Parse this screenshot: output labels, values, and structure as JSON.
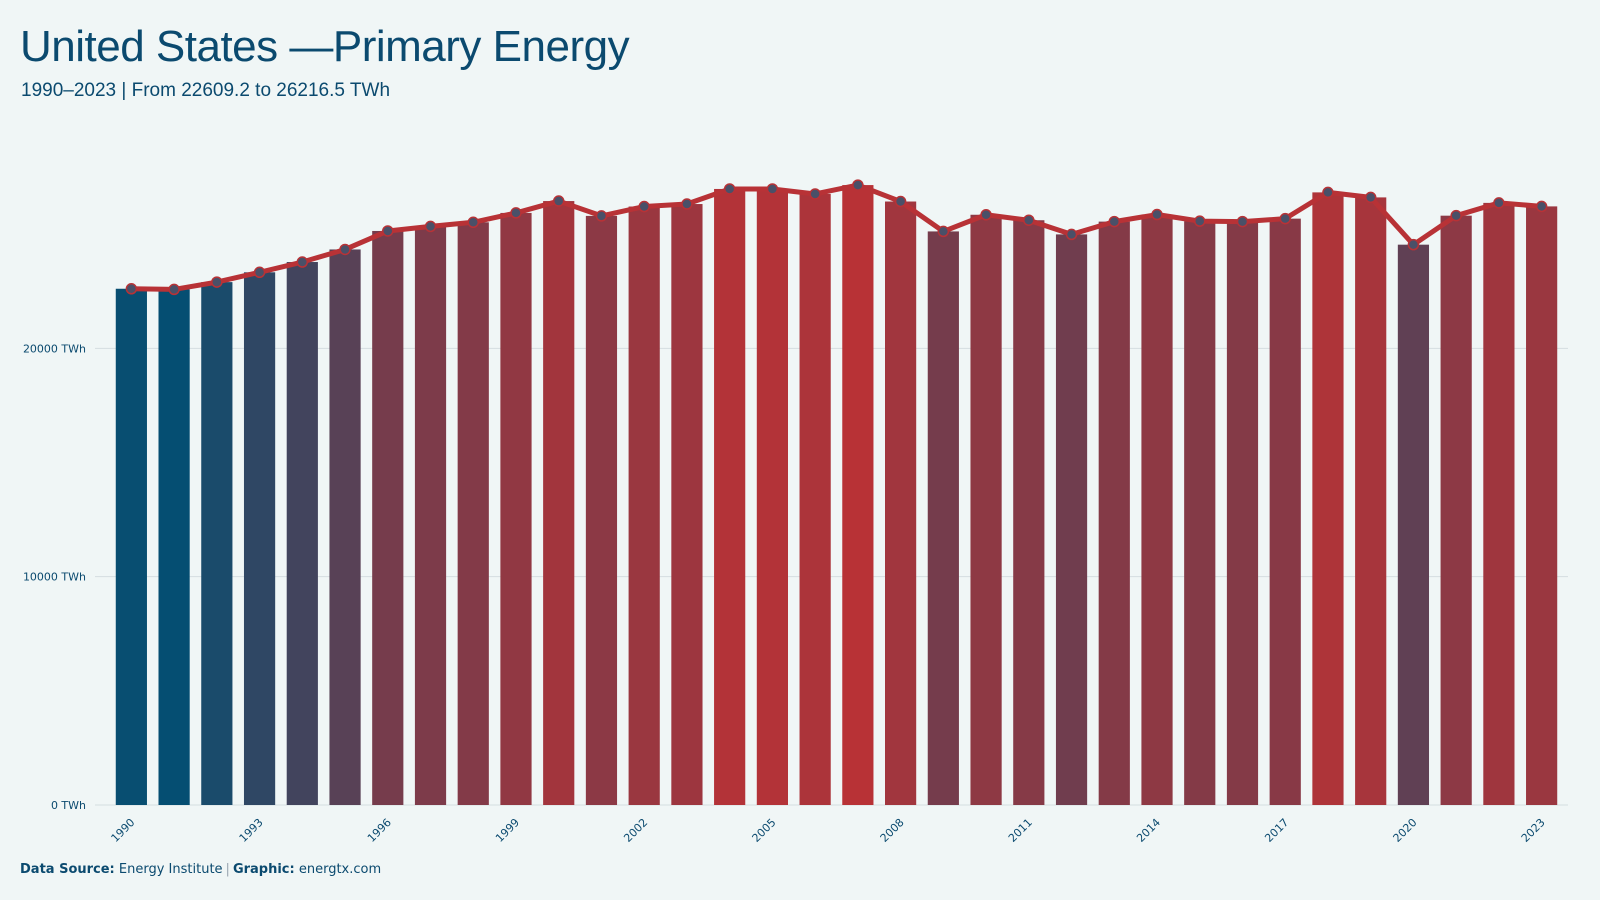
{
  "header": {
    "title": "United States —Primary Energy",
    "subtitle": "1990–2023 | From 22609.2 to 26216.5 TWh"
  },
  "footer": {
    "source_label": "Data Source:",
    "source_value": "Energy Institute",
    "separator": "|",
    "graphic_label": "Graphic:",
    "graphic_value": "energtx.com"
  },
  "colors": {
    "low": "#054e72",
    "high": "#b83236",
    "line": "#b83236",
    "marker_fill": "#4a5068",
    "grid": "#d5dde0",
    "background": "#f0f6f6"
  },
  "chart_data": {
    "type": "bar",
    "x": [
      1990,
      1991,
      1992,
      1993,
      1994,
      1995,
      1996,
      1997,
      1998,
      1999,
      2000,
      2001,
      2002,
      2003,
      2004,
      2005,
      2006,
      2007,
      2008,
      2009,
      2010,
      2011,
      2012,
      2013,
      2014,
      2015,
      2016,
      2017,
      2018,
      2019,
      2020,
      2021,
      2022,
      2023
    ],
    "values": [
      22609.2,
      22580,
      22900,
      23330,
      23780,
      24330,
      25140,
      25340,
      25520,
      25930,
      26450,
      25800,
      26210,
      26320,
      26980,
      26980,
      26760,
      27150,
      26430,
      25120,
      25850,
      25610,
      24990,
      25550,
      25860,
      25570,
      25550,
      25680,
      26830,
      26610,
      24540,
      25810,
      26370,
      26216.5
    ],
    "x_tick_labels": [
      "1990",
      "1993",
      "1996",
      "1999",
      "2002",
      "2005",
      "2008",
      "2011",
      "2014",
      "2017",
      "2020",
      "2023"
    ],
    "y_ticks": [
      {
        "value": 0,
        "label": "0 TWh"
      },
      {
        "value": 10000,
        "label": "10000 TWh"
      },
      {
        "value": 20000,
        "label": "20000 TWh"
      }
    ],
    "ylim": [
      0,
      30000
    ],
    "grid": true,
    "overlay": "line-with-markers"
  }
}
